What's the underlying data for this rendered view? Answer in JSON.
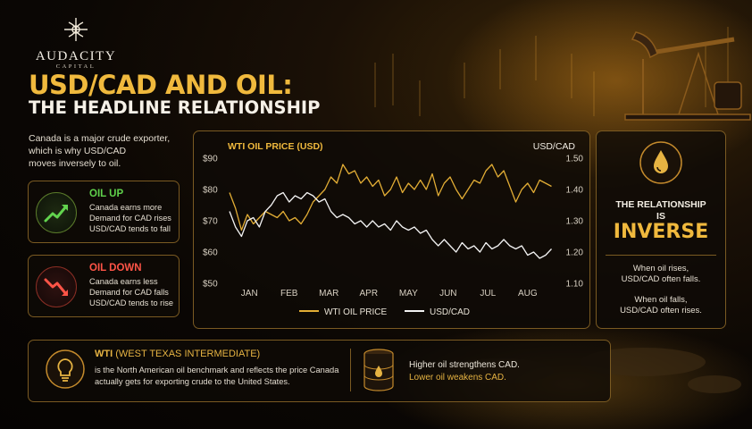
{
  "brand": {
    "name": "AUDACITY",
    "sub": "CAPITAL"
  },
  "headline": {
    "line1": "USD/CAD AND OIL:",
    "line2": "THE HEADLINE RELATIONSHIP"
  },
  "intro": [
    "Canada is a major crude exporter,",
    "which is why USD/CAD",
    "moves inversely to oil."
  ],
  "cards": {
    "oil_up": {
      "title": "OIL UP",
      "lines": [
        "Canada earns more",
        "Demand for CAD rises",
        "USD/CAD tends to fall"
      ],
      "color": "#5fd14b"
    },
    "oil_down": {
      "title": "OIL DOWN",
      "lines": [
        "Canada earns less",
        "Demand for CAD falls",
        "USD/CAD tends to rise"
      ],
      "color": "#ff5447"
    }
  },
  "relationship": {
    "label": [
      "THE RELATIONSHIP",
      "IS"
    ],
    "big": "INVERSE",
    "rises": [
      "When oil rises,",
      "USD/CAD often falls."
    ],
    "falls": [
      "When oil falls,",
      "USD/CAD often rises."
    ]
  },
  "wti": {
    "title": "WTI",
    "title_sub": "(WEST TEXAS INTERMEDIATE)",
    "lines": [
      "is the North American oil benchmark and reflects the price Canada",
      "actually gets for exporting crude to the United States."
    ],
    "effects": [
      "Higher oil strengthens CAD.",
      "Lower oil weakens CAD."
    ]
  },
  "chart_data": {
    "type": "line",
    "title": "",
    "left_axis_label": "WTI OIL PRICE (USD)",
    "right_axis_label": "USD/CAD",
    "y_left": {
      "min": 50,
      "max": 90,
      "ticks": [
        "$90",
        "$80",
        "$70",
        "$60",
        "$50"
      ]
    },
    "y_right": {
      "min": 1.1,
      "max": 1.5,
      "ticks": [
        "1.50",
        "1.40",
        "1.30",
        "1.20",
        "1.10"
      ]
    },
    "x_ticks": [
      "JAN",
      "FEB",
      "MAR",
      "APR",
      "MAY",
      "JUN",
      "JUL",
      "AUG"
    ],
    "x_range": [
      0,
      8.2
    ],
    "grid": false,
    "legend": "bottom",
    "series": [
      {
        "name": "WTI OIL PRICE",
        "axis": "left",
        "color": "#e2ad35",
        "x": [
          0,
          0.15,
          0.3,
          0.45,
          0.6,
          0.75,
          0.9,
          1.05,
          1.2,
          1.35,
          1.5,
          1.65,
          1.8,
          1.95,
          2.1,
          2.25,
          2.4,
          2.55,
          2.7,
          2.85,
          3.0,
          3.15,
          3.3,
          3.45,
          3.6,
          3.75,
          3.9,
          4.05,
          4.2,
          4.35,
          4.5,
          4.65,
          4.8,
          4.95,
          5.1,
          5.25,
          5.4,
          5.55,
          5.7,
          5.85,
          6.0,
          6.15,
          6.3,
          6.45,
          6.6,
          6.75,
          6.9,
          7.05,
          7.2,
          7.35,
          7.5,
          7.65,
          7.8,
          7.95,
          8.1
        ],
        "y": [
          79,
          74,
          67,
          72,
          69,
          71,
          73,
          72,
          71,
          73,
          70,
          71,
          69,
          72,
          76,
          78,
          80,
          84,
          82,
          88,
          85,
          86,
          82,
          84,
          81,
          83,
          78,
          80,
          84,
          79,
          82,
          80,
          83,
          80,
          85,
          78,
          82,
          84,
          80,
          77,
          80,
          83,
          82,
          86,
          88,
          84,
          86,
          81,
          76,
          80,
          82,
          79,
          83,
          82,
          81
        ]
      },
      {
        "name": "USD/CAD",
        "axis": "right",
        "color": "#f2f2f2",
        "x": [
          0,
          0.15,
          0.3,
          0.45,
          0.6,
          0.75,
          0.9,
          1.05,
          1.2,
          1.35,
          1.5,
          1.65,
          1.8,
          1.95,
          2.1,
          2.25,
          2.4,
          2.55,
          2.7,
          2.85,
          3.0,
          3.15,
          3.3,
          3.45,
          3.6,
          3.75,
          3.9,
          4.05,
          4.2,
          4.35,
          4.5,
          4.65,
          4.8,
          4.95,
          5.1,
          5.25,
          5.4,
          5.55,
          5.7,
          5.85,
          6.0,
          6.15,
          6.3,
          6.45,
          6.6,
          6.75,
          6.9,
          7.05,
          7.2,
          7.35,
          7.5,
          7.65,
          7.8,
          7.95,
          8.1
        ],
        "y": [
          1.33,
          1.28,
          1.25,
          1.3,
          1.31,
          1.28,
          1.33,
          1.35,
          1.38,
          1.39,
          1.36,
          1.38,
          1.37,
          1.39,
          1.38,
          1.36,
          1.37,
          1.33,
          1.31,
          1.32,
          1.31,
          1.29,
          1.3,
          1.28,
          1.3,
          1.28,
          1.29,
          1.27,
          1.3,
          1.28,
          1.27,
          1.28,
          1.26,
          1.27,
          1.24,
          1.22,
          1.24,
          1.22,
          1.2,
          1.23,
          1.21,
          1.22,
          1.2,
          1.23,
          1.21,
          1.22,
          1.24,
          1.22,
          1.21,
          1.22,
          1.19,
          1.2,
          1.18,
          1.19,
          1.21
        ]
      }
    ]
  }
}
